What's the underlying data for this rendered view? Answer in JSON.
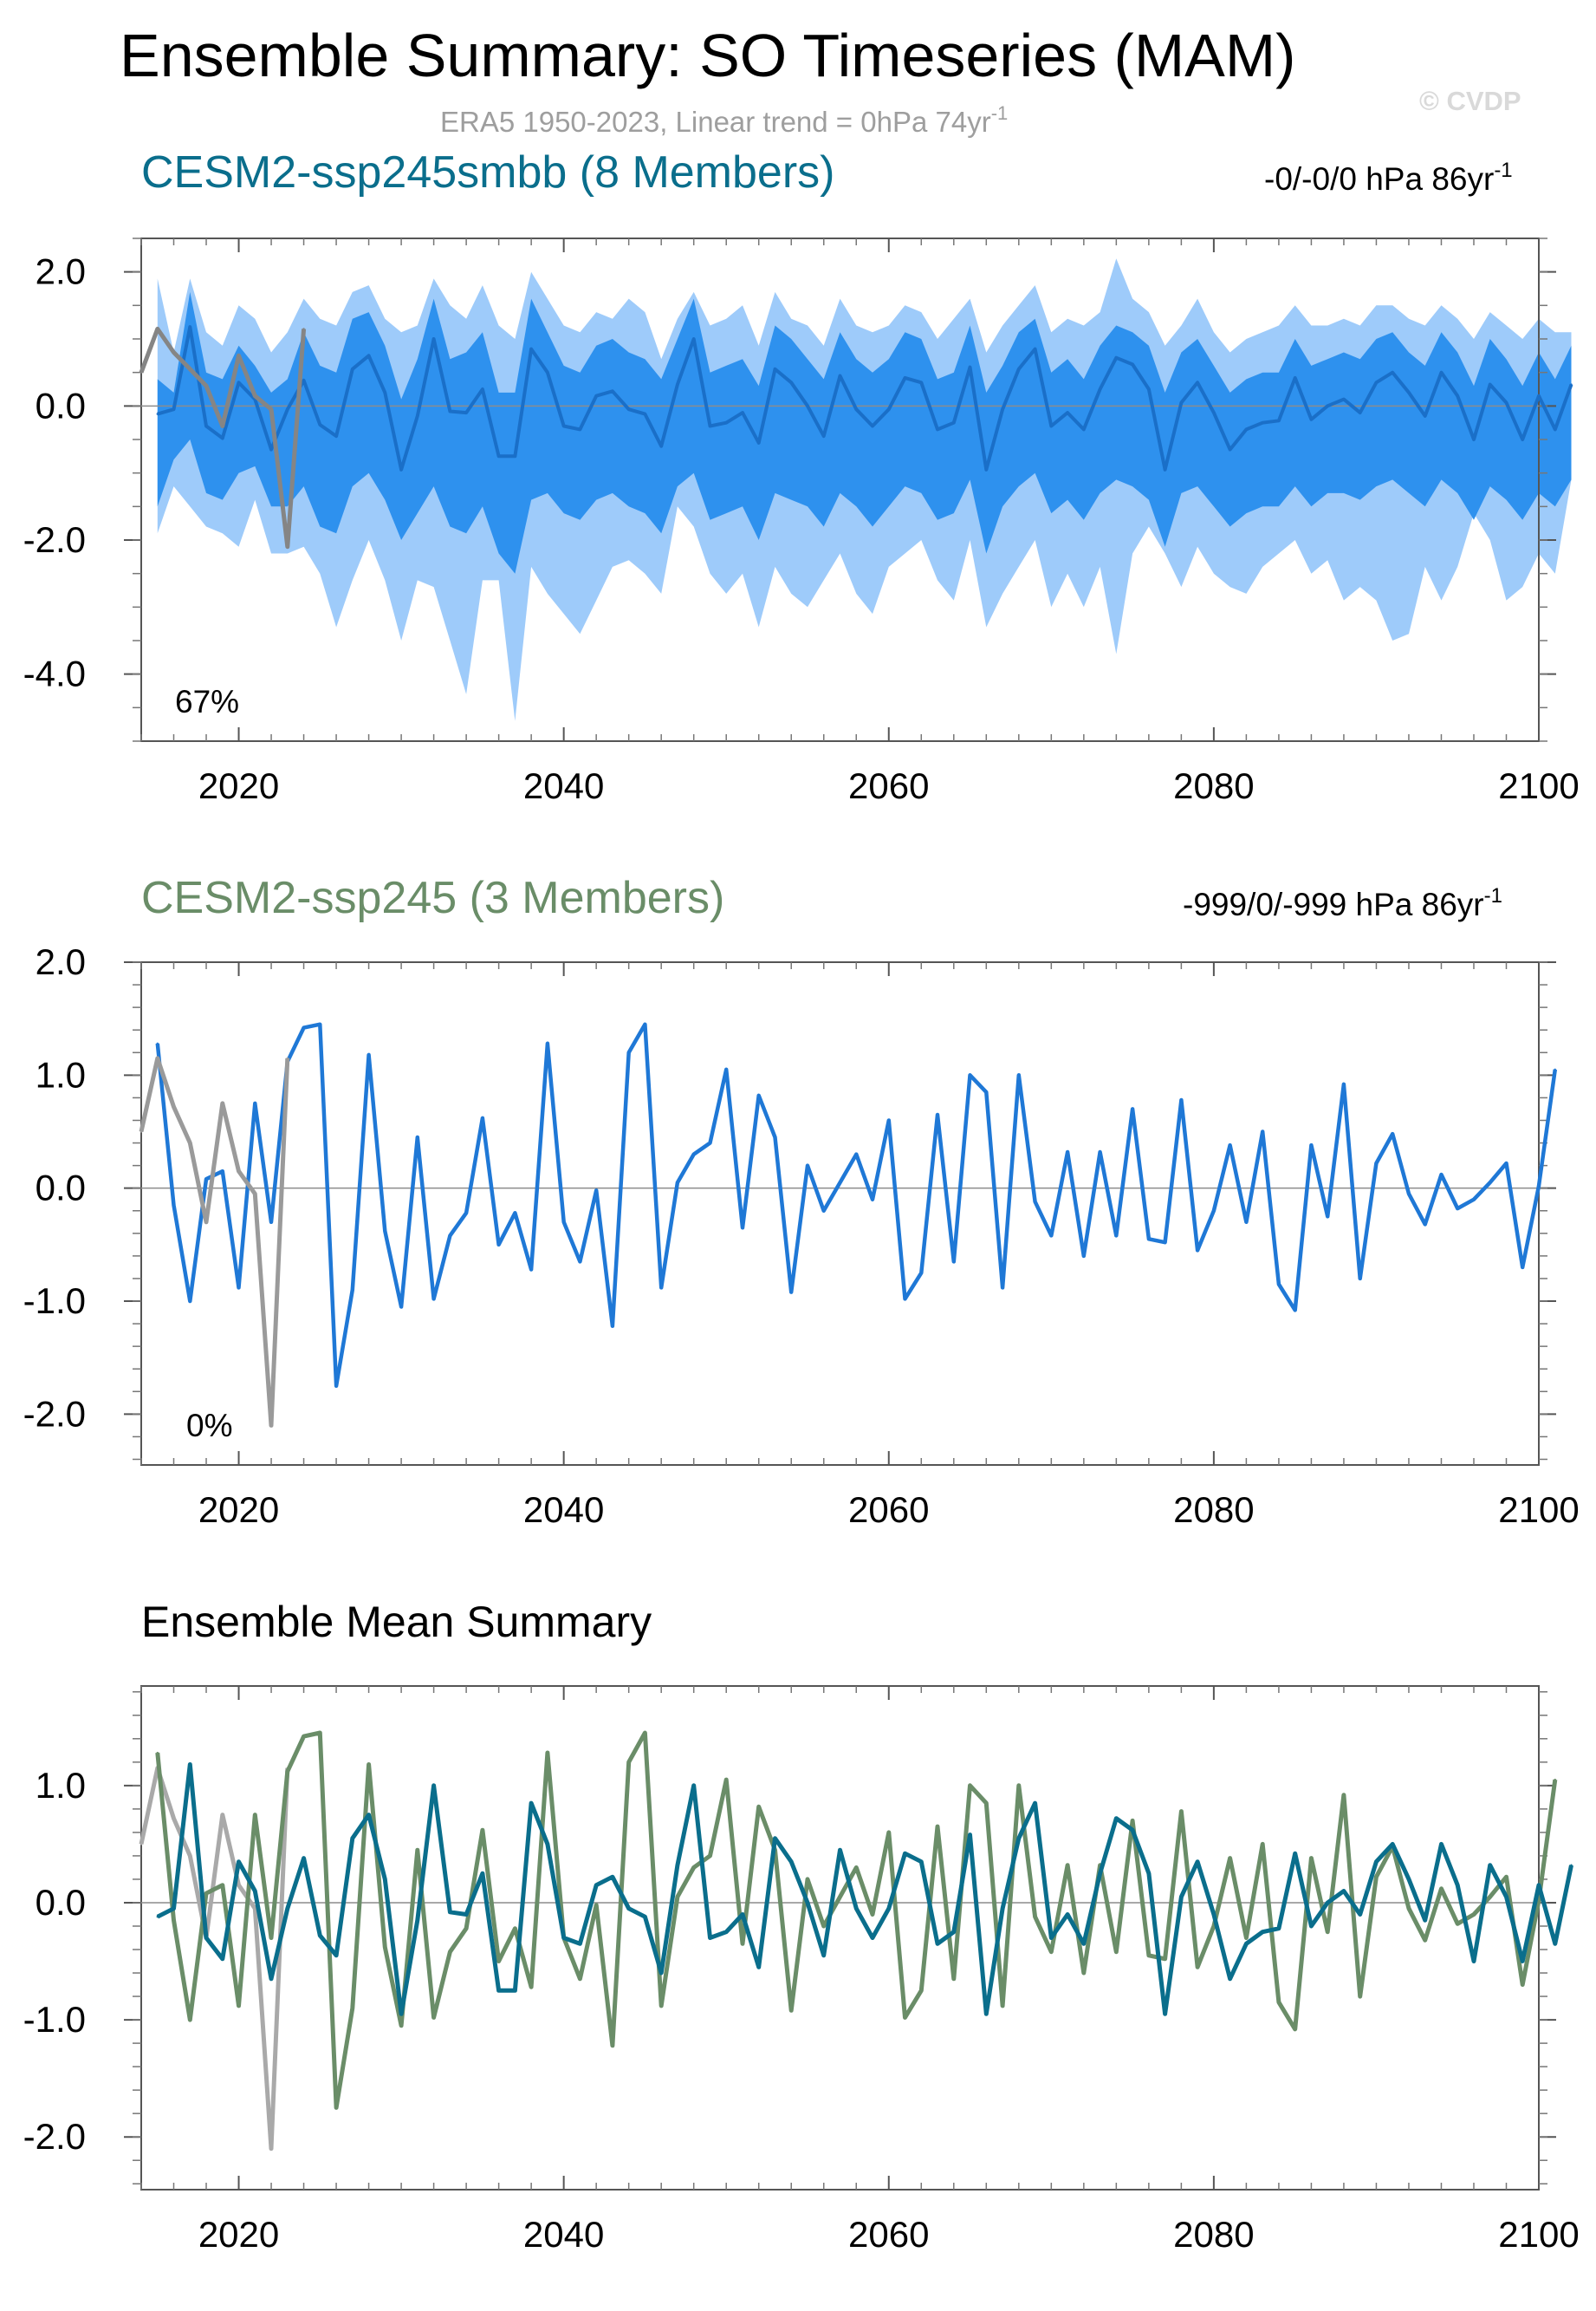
{
  "title": "Ensemble Summary: SO Timeseries (MAM)",
  "subtitle": "ERA5 1950-2023, Linear trend = 0hPa 74yr",
  "subtitle_sup": "-1",
  "copyright": "© CVDP",
  "colors": {
    "ssp245smbb": "#0a6e8c",
    "ssp245": "#6a8d68",
    "ens_line": "#1f78d6",
    "band_outer": "#9ecbfa",
    "band_inner": "#2e91ee",
    "obs": "#9a9a9a",
    "obs_dark": "#858585"
  },
  "chart_data": [
    {
      "type": "area",
      "title": "CESM2-ssp245smbb (8 Members)",
      "trend_text": "-0/-0/0 hPa 86yr",
      "trend_sup": "-1",
      "percent_label": "67%",
      "xlim": [
        2014,
        2100
      ],
      "ylim": [
        -5.0,
        2.5
      ],
      "x_ticks": [
        "2020",
        "2040",
        "2060",
        "2080",
        "2100"
      ],
      "y_ticks": [
        "2.0",
        "0.0",
        "-2.0",
        "-4.0"
      ],
      "series": [
        {
          "name": "ensemble mean",
          "x_start": 2015,
          "values": [
            -0.12,
            -0.05,
            1.18,
            -0.3,
            -0.48,
            0.35,
            0.1,
            -0.65,
            -0.05,
            0.38,
            -0.28,
            -0.45,
            0.55,
            0.75,
            0.2,
            -0.95,
            -0.15,
            1.0,
            -0.08,
            -0.1,
            0.25,
            -0.75,
            -0.75,
            0.85,
            0.5,
            -0.3,
            -0.35,
            0.15,
            0.22,
            -0.05,
            -0.12,
            -0.6,
            0.32,
            1.0,
            -0.3,
            -0.25,
            -0.1,
            -0.55,
            0.55,
            0.35,
            0.0,
            -0.45,
            0.45,
            -0.05,
            -0.3,
            -0.05,
            0.42,
            0.35,
            -0.35,
            -0.25,
            0.58,
            -0.95,
            -0.05,
            0.55,
            0.85,
            -0.3,
            -0.1,
            -0.35,
            0.25,
            0.72,
            0.62,
            0.25,
            -0.95,
            0.05,
            0.35,
            -0.1,
            -0.65,
            -0.35,
            -0.25,
            -0.22,
            0.42,
            -0.2,
            0.0,
            0.1,
            -0.1,
            0.35,
            0.5,
            0.2,
            -0.15,
            0.5,
            0.15,
            -0.5,
            0.32,
            0.05,
            -0.5,
            0.15,
            -0.35,
            0.32
          ]
        },
        {
          "name": "obs",
          "x_start": 2014,
          "values": [
            0.5,
            1.15,
            0.8,
            0.55,
            0.3,
            -0.3,
            0.75,
            0.15,
            -0.05,
            -2.1,
            1.15
          ]
        }
      ],
      "bands": {
        "inner_upper": [
          0.4,
          0.2,
          1.7,
          0.5,
          0.4,
          0.9,
          0.6,
          0.2,
          0.4,
          1.1,
          0.6,
          0.5,
          1.3,
          1.4,
          0.9,
          0.1,
          0.7,
          1.6,
          0.7,
          0.8,
          1.1,
          0.2,
          0.2,
          1.6,
          1.1,
          0.6,
          0.5,
          0.9,
          1.0,
          0.8,
          0.7,
          0.4,
          1.0,
          1.6,
          0.5,
          0.6,
          0.7,
          0.3,
          1.2,
          1.0,
          0.7,
          0.4,
          1.1,
          0.7,
          0.5,
          0.7,
          1.1,
          1.0,
          0.4,
          0.5,
          1.2,
          0.2,
          0.6,
          1.1,
          1.3,
          0.5,
          0.7,
          0.4,
          0.9,
          1.2,
          1.1,
          0.9,
          0.2,
          0.8,
          1.0,
          0.6,
          0.2,
          0.4,
          0.5,
          0.5,
          1.0,
          0.6,
          0.7,
          0.8,
          0.7,
          1.0,
          1.1,
          0.8,
          0.6,
          1.1,
          0.8,
          0.3,
          1.0,
          0.7,
          0.3,
          0.8,
          0.4,
          0.9
        ],
        "inner_lower": [
          -1.5,
          -0.8,
          -0.5,
          -1.3,
          -1.4,
          -1.0,
          -0.9,
          -1.5,
          -1.5,
          -1.2,
          -1.8,
          -1.9,
          -1.2,
          -1.0,
          -1.4,
          -2.0,
          -1.6,
          -1.2,
          -1.8,
          -1.9,
          -1.5,
          -2.2,
          -2.5,
          -1.4,
          -1.3,
          -1.6,
          -1.7,
          -1.4,
          -1.3,
          -1.5,
          -1.6,
          -1.9,
          -1.2,
          -1.0,
          -1.7,
          -1.6,
          -1.5,
          -2.0,
          -1.3,
          -1.4,
          -1.5,
          -1.8,
          -1.3,
          -1.5,
          -1.8,
          -1.5,
          -1.2,
          -1.3,
          -1.7,
          -1.6,
          -1.1,
          -2.2,
          -1.5,
          -1.2,
          -1.0,
          -1.6,
          -1.4,
          -1.7,
          -1.3,
          -1.1,
          -1.2,
          -1.4,
          -2.1,
          -1.3,
          -1.2,
          -1.5,
          -1.8,
          -1.6,
          -1.5,
          -1.5,
          -1.2,
          -1.5,
          -1.3,
          -1.3,
          -1.4,
          -1.2,
          -1.1,
          -1.3,
          -1.5,
          -1.1,
          -1.3,
          -1.7,
          -1.2,
          -1.4,
          -1.7,
          -1.3,
          -1.5,
          -1.1
        ],
        "outer_upper": [
          1.9,
          0.8,
          1.9,
          1.1,
          0.9,
          1.5,
          1.3,
          0.8,
          1.1,
          1.6,
          1.3,
          1.2,
          1.7,
          1.8,
          1.3,
          1.1,
          1.2,
          1.9,
          1.5,
          1.3,
          1.8,
          1.2,
          1.0,
          2.0,
          1.6,
          1.2,
          1.1,
          1.4,
          1.3,
          1.6,
          1.4,
          0.7,
          1.3,
          1.7,
          1.2,
          1.3,
          1.5,
          0.9,
          1.7,
          1.3,
          1.2,
          0.9,
          1.6,
          1.2,
          1.1,
          1.2,
          1.5,
          1.4,
          1.0,
          1.3,
          1.6,
          0.8,
          1.2,
          1.5,
          1.8,
          1.1,
          1.3,
          1.2,
          1.4,
          2.2,
          1.6,
          1.4,
          0.9,
          1.2,
          1.6,
          1.1,
          0.8,
          1.0,
          1.1,
          1.2,
          1.5,
          1.2,
          1.2,
          1.3,
          1.2,
          1.5,
          1.5,
          1.3,
          1.2,
          1.5,
          1.3,
          1.0,
          1.4,
          1.2,
          1.0,
          1.3,
          1.1,
          1.1
        ],
        "outer_lower": [
          -1.9,
          -1.2,
          -1.5,
          -1.8,
          -1.9,
          -2.1,
          -1.4,
          -2.2,
          -2.2,
          -2.1,
          -2.5,
          -3.3,
          -2.6,
          -2.0,
          -2.6,
          -3.5,
          -2.6,
          -2.7,
          -3.5,
          -4.3,
          -2.6,
          -2.6,
          -4.7,
          -2.4,
          -2.8,
          -3.1,
          -3.4,
          -2.9,
          -2.4,
          -2.3,
          -2.5,
          -2.8,
          -1.5,
          -1.8,
          -2.5,
          -2.8,
          -2.5,
          -3.3,
          -2.4,
          -2.8,
          -3.0,
          -2.6,
          -2.2,
          -2.8,
          -3.1,
          -2.4,
          -2.2,
          -2.0,
          -2.6,
          -2.9,
          -2.0,
          -3.3,
          -2.8,
          -2.4,
          -2.0,
          -3.0,
          -2.5,
          -3.0,
          -2.4,
          -3.7,
          -2.2,
          -1.8,
          -2.2,
          -2.7,
          -2.1,
          -2.5,
          -2.7,
          -2.8,
          -2.4,
          -2.2,
          -2.0,
          -2.5,
          -2.3,
          -2.9,
          -2.7,
          -2.9,
          -3.5,
          -3.4,
          -2.4,
          -2.9,
          -2.4,
          -1.6,
          -2.0,
          -2.9,
          -2.7,
          -2.2,
          -2.5,
          -1.1
        ]
      }
    },
    {
      "type": "line",
      "title": "CESM2-ssp245 (3 Members)",
      "trend_text": "-999/0/-999 hPa 86yr",
      "trend_sup": "-1",
      "percent_label": "0%",
      "xlim": [
        2014,
        2100
      ],
      "ylim": [
        -2.45,
        2.0
      ],
      "x_ticks": [
        "2020",
        "2040",
        "2060",
        "2080",
        "2100"
      ],
      "y_ticks": [
        "2.0",
        "1.0",
        "0.0",
        "-1.0",
        "-2.0"
      ],
      "series": [
        {
          "name": "ensemble mean",
          "x_start": 2015,
          "values": [
            1.28,
            -0.15,
            -1.0,
            0.08,
            0.15,
            -0.88,
            0.75,
            -0.3,
            1.12,
            1.42,
            1.45,
            -1.75,
            -0.9,
            1.18,
            -0.38,
            -1.05,
            0.45,
            -0.98,
            -0.42,
            -0.22,
            0.62,
            -0.5,
            -0.22,
            -0.72,
            1.28,
            -0.3,
            -0.65,
            -0.02,
            -1.22,
            1.2,
            1.45,
            -0.88,
            0.05,
            0.3,
            0.4,
            1.05,
            -0.35,
            0.82,
            0.45,
            -0.92,
            0.2,
            -0.2,
            0.05,
            0.3,
            -0.1,
            0.6,
            -0.98,
            -0.75,
            0.65,
            -0.65,
            1.0,
            0.85,
            -0.88,
            1.0,
            -0.12,
            -0.42,
            0.32,
            -0.6,
            0.32,
            -0.42,
            0.7,
            -0.45,
            -0.48,
            0.78,
            -0.55,
            -0.2,
            0.38,
            -0.3,
            0.5,
            -0.85,
            -1.08,
            0.38,
            -0.25,
            0.92,
            -0.8,
            0.22,
            0.48,
            -0.05,
            -0.32,
            0.12,
            -0.18,
            -0.1,
            0.05,
            0.22,
            -0.7,
            0.02,
            1.05
          ]
        },
        {
          "name": "obs",
          "x_start": 2014,
          "values": [
            0.5,
            1.15,
            0.72,
            0.4,
            -0.3,
            0.75,
            0.15,
            -0.05,
            -2.1,
            1.15
          ]
        }
      ]
    },
    {
      "type": "line",
      "title": "Ensemble Mean Summary",
      "xlim": [
        2014,
        2100
      ],
      "ylim": [
        -2.45,
        1.85
      ],
      "x_ticks": [
        "2020",
        "2040",
        "2060",
        "2080",
        "2100"
      ],
      "y_ticks": [
        "1.0",
        "0.0",
        "-1.0",
        "-2.0"
      ]
    }
  ]
}
